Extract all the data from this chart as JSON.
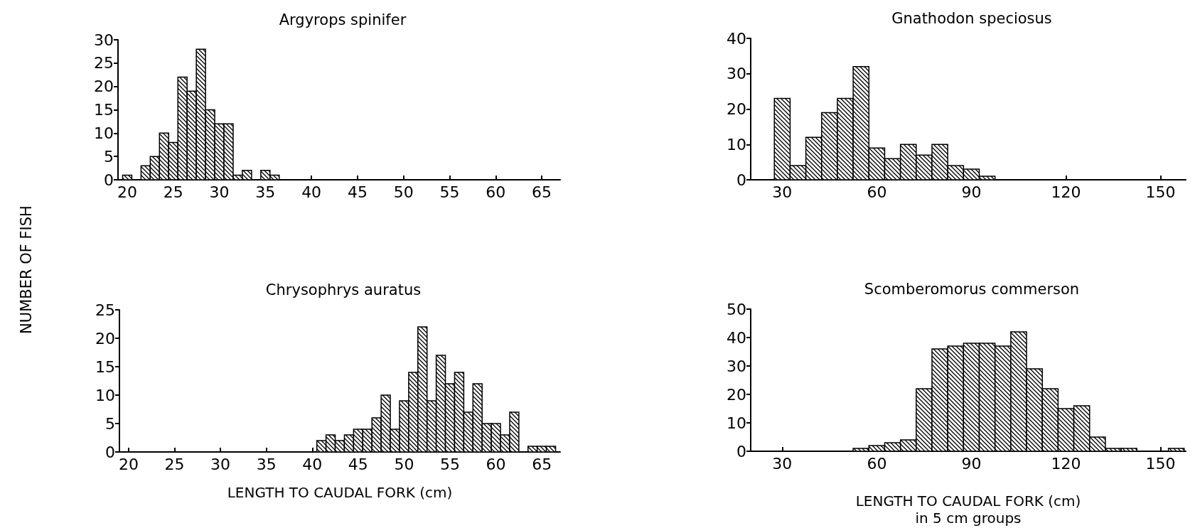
{
  "chart_data": [
    {
      "type": "histogram",
      "title": "Argyrops spinifer",
      "ylabel": "NUMBER OF FISH",
      "color": "#000000",
      "bins": [
        19.5,
        20.5,
        21.5,
        22.5,
        23.5,
        24.5,
        25.5,
        26.5,
        27.5,
        28.5,
        29.5,
        30.5,
        31.5,
        32.5,
        33.5,
        34.5,
        35.5,
        36.5
      ],
      "values": [
        1,
        0,
        3,
        5,
        10,
        8,
        22,
        19,
        28,
        15,
        12,
        12,
        1,
        2,
        0,
        2,
        1
      ],
      "xlim": [
        19,
        67
      ],
      "xticks": [
        20,
        25,
        30,
        35,
        40,
        45,
        50,
        55,
        60,
        65
      ],
      "ylim": [
        0,
        30
      ],
      "yticks": [
        0,
        5,
        10,
        15,
        20,
        25,
        30
      ]
    },
    {
      "type": "histogram",
      "title": "Gnathodon speciosus",
      "color": "#000000",
      "bins": [
        27.5,
        32.5,
        37.5,
        42.5,
        47.5,
        52.5,
        57.5,
        62.5,
        67.5,
        72.5,
        77.5,
        82.5,
        87.5,
        92.5,
        97.5
      ],
      "values": [
        23,
        4,
        12,
        19,
        23,
        32,
        9,
        6,
        10,
        7,
        10,
        4,
        3,
        1
      ],
      "xlim": [
        20,
        158
      ],
      "xticks": [
        30,
        60,
        90,
        120,
        150
      ],
      "ylim": [
        0,
        40
      ],
      "yticks": [
        0,
        10,
        20,
        30,
        40
      ]
    },
    {
      "type": "histogram",
      "title": "Chrysophrys auratus",
      "xlabel": "LENGTH TO CAUDAL FORK (cm)",
      "color": "#000000",
      "bins": [
        40.5,
        41.5,
        42.5,
        43.5,
        44.5,
        45.5,
        46.5,
        47.5,
        48.5,
        49.5,
        50.5,
        51.5,
        52.5,
        53.5,
        54.5,
        55.5,
        56.5,
        57.5,
        58.5,
        59.5,
        60.5,
        61.5,
        62.5,
        63.5,
        64.5,
        65.5,
        66.5
      ],
      "values": [
        2,
        3,
        2,
        3,
        4,
        4,
        6,
        10,
        4,
        9,
        14,
        22,
        9,
        17,
        12,
        14,
        7,
        12,
        5,
        5,
        3,
        7,
        0,
        1,
        1,
        1
      ],
      "xlim": [
        19,
        67
      ],
      "xticks": [
        20,
        25,
        30,
        35,
        40,
        45,
        50,
        55,
        60,
        65
      ],
      "ylim": [
        0,
        25
      ],
      "yticks": [
        0,
        5,
        10,
        15,
        20,
        25
      ]
    },
    {
      "type": "histogram",
      "title": "Scomberomorus commerson",
      "xlabel": "LENGTH TO CAUDAL FORK (cm)\nin 5 cm groups",
      "color": "#000000",
      "bins": [
        52.5,
        57.5,
        62.5,
        67.5,
        72.5,
        77.5,
        82.5,
        87.5,
        92.5,
        97.5,
        102.5,
        107.5,
        112.5,
        117.5,
        122.5,
        127.5,
        132.5,
        137.5,
        142.5,
        147.5,
        152.5,
        157.5
      ],
      "values": [
        1,
        2,
        3,
        4,
        22,
        36,
        37,
        38,
        38,
        37,
        42,
        29,
        22,
        15,
        16,
        5,
        1,
        1,
        0,
        0,
        1
      ],
      "xlim": [
        20,
        158
      ],
      "xticks": [
        30,
        60,
        90,
        120,
        150
      ],
      "ylim": [
        0,
        50
      ],
      "yticks": [
        0,
        10,
        20,
        30,
        40,
        50
      ]
    }
  ]
}
